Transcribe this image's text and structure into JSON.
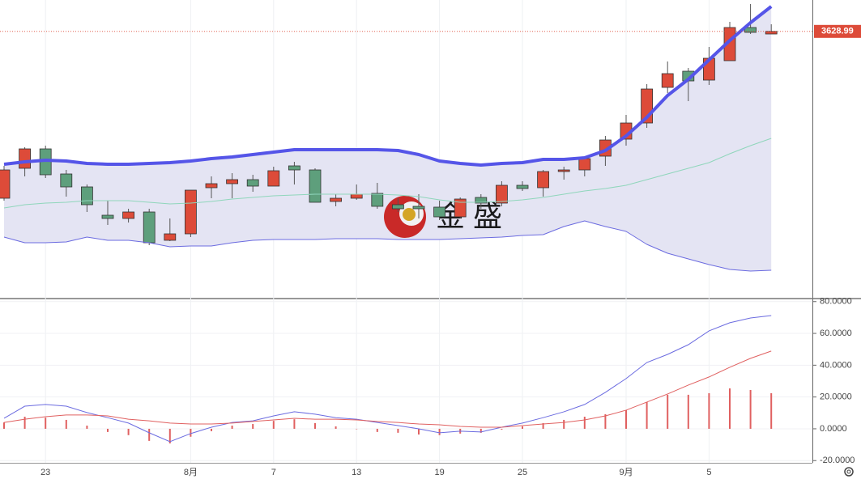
{
  "chart_data": [
    {
      "type": "candlestick",
      "categories": [
        null,
        null,
        "23",
        null,
        null,
        null,
        null,
        null,
        null,
        "8月",
        null,
        null,
        null,
        "7",
        null,
        null,
        null,
        "13",
        null,
        null,
        null,
        "19",
        null,
        null,
        null,
        "25",
        null,
        null,
        null,
        null,
        "9月",
        null,
        null,
        null,
        "5",
        null,
        null,
        null
      ],
      "open": [
        3113.5,
        3206,
        3266,
        3188.5,
        3148.5,
        3061,
        3051,
        3071,
        2983.5,
        3003.5,
        3146,
        3158.5,
        3171,
        3151,
        3213.5,
        3201,
        3103.5,
        3113.5,
        3128.5,
        3093.5,
        3088.5,
        3086,
        3056,
        3116,
        3098.5,
        3153.5,
        3146,
        3196,
        3201,
        3243.5,
        3296,
        3346,
        3456,
        3506,
        3478.5,
        3538.5,
        3641,
        3621
      ],
      "high": [
        3213.5,
        3271,
        3276,
        3201,
        3156,
        3106,
        3081,
        3081,
        3051,
        3138.5,
        3181,
        3191,
        3186,
        3211,
        3226,
        3206,
        3126,
        3156,
        3161,
        3113.5,
        3126,
        3106,
        3116,
        3126,
        3166,
        3166,
        3201,
        3211,
        3243.5,
        3306,
        3371,
        3466,
        3536,
        3516,
        3581,
        3658.5,
        3713.5,
        3651
      ],
      "low": [
        3106,
        3181,
        3176,
        3118.5,
        3071,
        3031,
        3038.5,
        2968.5,
        2981,
        2993.5,
        3113.5,
        3113.5,
        3133.5,
        3151,
        3156,
        3101,
        3088.5,
        3108.5,
        3081,
        3071,
        3051,
        3046,
        3051,
        3081,
        3088.5,
        3136,
        3118.5,
        3171,
        3181,
        3213.5,
        3276,
        3331,
        3438.5,
        3413.5,
        3463.5,
        3538.5,
        3621,
        3621
      ],
      "close": [
        3201,
        3266,
        3186,
        3148.5,
        3093.5,
        3051,
        3071,
        2976,
        3003.5,
        3138.5,
        3158.5,
        3171,
        3151,
        3198.5,
        3201,
        3101,
        3113.5,
        3126,
        3088.5,
        3081,
        3081,
        3056,
        3111,
        3098.5,
        3153.5,
        3143.5,
        3196,
        3201,
        3236,
        3293.5,
        3346,
        3451,
        3498.5,
        3476,
        3546,
        3641,
        3626,
        3628.99
      ],
      "up_color": "#dd4b39",
      "down_color": "#5e9f7c",
      "ylim": [
        2806,
        3726
      ],
      "bands": [
        {
          "color": "#5555e8",
          "width": 4,
          "values": [
            3218.5,
            3226,
            3231,
            3228.5,
            3221,
            3218.5,
            3218.5,
            3221,
            3223.5,
            3228.5,
            3236,
            3241,
            3248.5,
            3256,
            3263.5,
            3263.5,
            3263.5,
            3263.5,
            3263.5,
            3261,
            3248.5,
            3228.5,
            3221,
            3216,
            3221,
            3223.5,
            3233.5,
            3233.5,
            3238.5,
            3261,
            3306,
            3363.5,
            3431,
            3481,
            3541,
            3601,
            3656,
            3706
          ]
        },
        {
          "color": "#8fd6bb",
          "width": 1,
          "values": [
            3083.5,
            3093.5,
            3098.5,
            3101,
            3106,
            3106,
            3106,
            3101,
            3096,
            3098.5,
            3103.5,
            3111,
            3116,
            3121,
            3123.5,
            3126,
            3126,
            3126,
            3126,
            3123.5,
            3118.5,
            3108.5,
            3101,
            3101,
            3103.5,
            3108.5,
            3116,
            3126,
            3136,
            3143.5,
            3153.5,
            3171,
            3188.5,
            3206,
            3223.5,
            3251,
            3276,
            3298.5
          ]
        },
        {
          "color": "#6b6be0",
          "width": 1,
          "values": [
            2993.5,
            2976,
            2976,
            2978.5,
            2993.5,
            2983.5,
            2983.5,
            2976,
            2963.5,
            2966,
            2966,
            2976,
            2983.5,
            2986,
            2986,
            2986,
            2988.5,
            2988.5,
            2988.5,
            2986,
            2986,
            2986,
            2988.5,
            2991,
            2993.5,
            2998.5,
            3001,
            3026,
            3043.5,
            3026,
            3011,
            2971,
            2943.5,
            2926,
            2908.5,
            2893.5,
            2888.5,
            2891
          ]
        }
      ],
      "band_fill": "#e4e4f3",
      "last_price": 3628.99,
      "last_price_color": "#dd4b39",
      "watermark": "金 盛"
    },
    {
      "type": "macd",
      "ylim": [
        -21.4,
        81.4
      ],
      "yticks": [
        {
          "value": 80,
          "label": "80.0000"
        },
        {
          "value": 60,
          "label": "60.0000"
        },
        {
          "value": 40,
          "label": "40.0000"
        },
        {
          "value": 20,
          "label": "20.0000"
        },
        {
          "value": 0,
          "label": "0.0000"
        },
        {
          "value": -20,
          "label": "-20.0000"
        }
      ],
      "series": [
        {
          "type": "bar",
          "color": "#e06060",
          "values": [
            4,
            7.6,
            7,
            5.6,
            2,
            -2,
            -4,
            -7.6,
            -9.2,
            -5,
            -1.5,
            2,
            3,
            5,
            6,
            3.6,
            1.5,
            0,
            -2,
            -2.5,
            -3.6,
            -4,
            -3,
            -2.5,
            -0.5,
            1.5,
            3.6,
            5.6,
            7.6,
            9.2,
            11.7,
            16.8,
            21.4,
            21.4,
            22.4,
            25.4,
            24.4,
            22.4
          ]
        },
        {
          "type": "line",
          "color": "#6b6be0",
          "values": [
            6.6,
            14.2,
            15.3,
            14.2,
            10.2,
            7,
            3.6,
            -2.5,
            -8.1,
            -3,
            1,
            4,
            5,
            8.1,
            10.7,
            9.2,
            7,
            6,
            4,
            2,
            0,
            -2.5,
            -1.5,
            -2,
            1,
            3.6,
            7,
            10.7,
            15.3,
            22.9,
            31.6,
            41.7,
            46.8,
            52.9,
            61.6,
            66.7,
            69.7,
            71.2
          ]
        },
        {
          "type": "line",
          "color": "#e06060",
          "values": [
            4,
            6,
            7.6,
            8.7,
            8.7,
            8.1,
            6,
            5,
            3.6,
            3,
            3,
            3.6,
            4.6,
            5.6,
            6.6,
            6,
            6,
            5.6,
            4.6,
            4,
            3,
            2.5,
            1.5,
            1,
            1,
            2,
            3,
            4,
            5.6,
            8.1,
            11.7,
            16.8,
            21.9,
            27.5,
            32.6,
            38.7,
            44.3,
            48.9
          ]
        }
      ]
    }
  ]
}
